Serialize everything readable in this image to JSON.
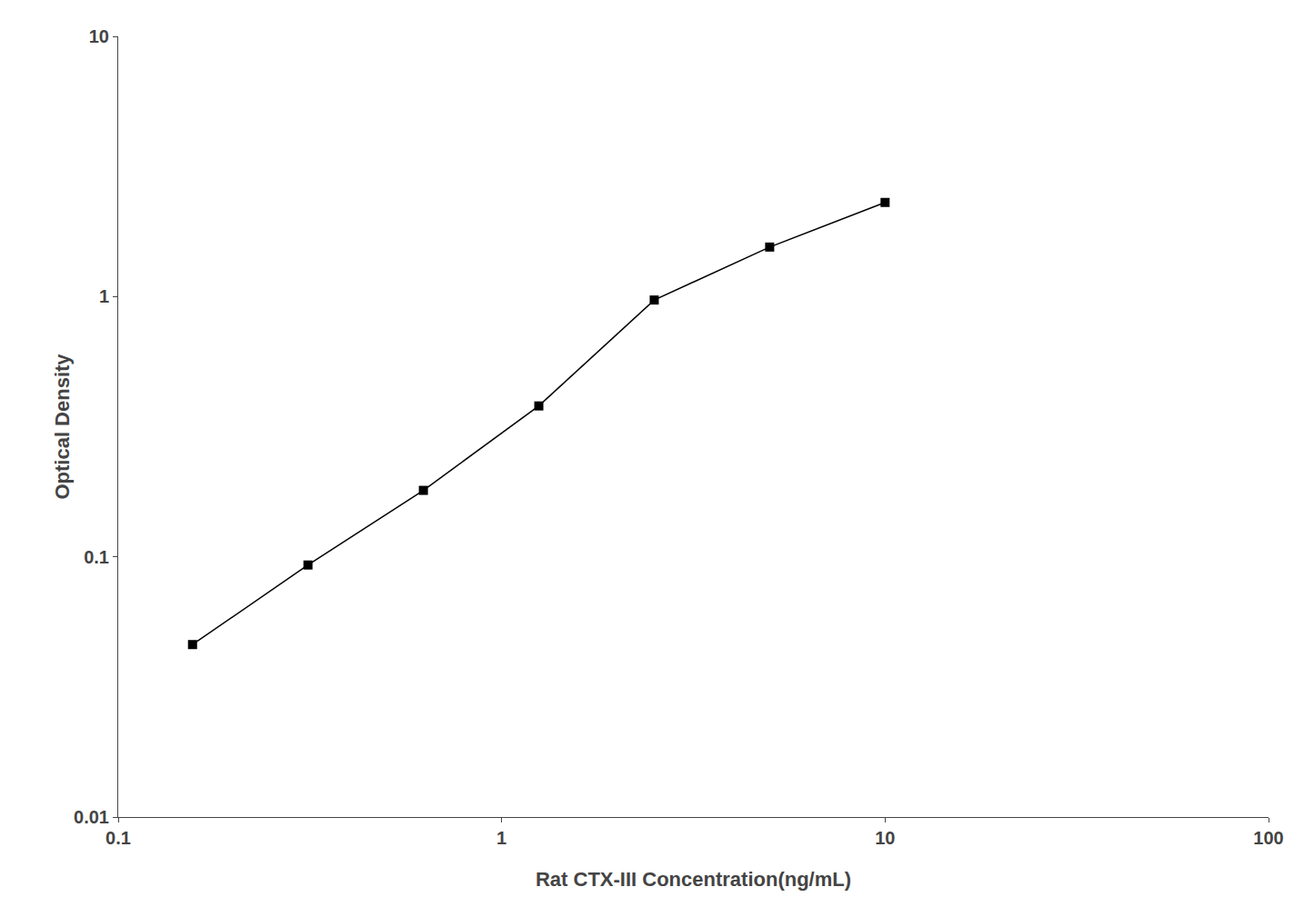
{
  "chart_data": {
    "type": "line",
    "x": [
      0.15625,
      0.3125,
      0.625,
      1.25,
      2.5,
      5.0,
      10.0
    ],
    "values": [
      0.046,
      0.093,
      0.18,
      0.38,
      0.97,
      1.55,
      2.3
    ],
    "xlabel": "Rat CTX-III Concentration(ng/mL)",
    "ylabel": "Optical Density",
    "xlim": [
      0.1,
      100
    ],
    "ylim": [
      0.01,
      10
    ],
    "xticks": [
      0.1,
      1,
      10,
      100
    ],
    "yticks": [
      0.01,
      0.1,
      1,
      10
    ],
    "log": true,
    "grid": false,
    "color": "#000000",
    "marker": "square",
    "line_style": "solid"
  }
}
